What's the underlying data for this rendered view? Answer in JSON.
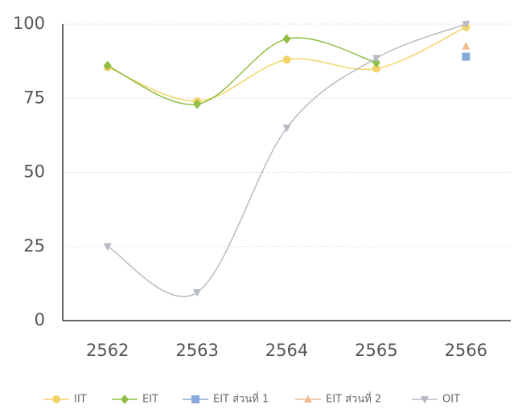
{
  "chart_data": {
    "type": "line",
    "categories": [
      "2562",
      "2563",
      "2564",
      "2565",
      "2566"
    ],
    "series": [
      {
        "name": "IIT",
        "color": "#f3d468",
        "marker": "circle",
        "values": [
          85.5,
          74,
          88,
          85,
          99
        ]
      },
      {
        "name": "EIT",
        "color": "#8fbe45",
        "marker": "diamond",
        "values": [
          86,
          73,
          95,
          87,
          null
        ]
      },
      {
        "name": "EIT ส่วนที่ 1",
        "color": "#86a9dc",
        "marker": "square",
        "values": [
          null,
          null,
          null,
          null,
          89
        ]
      },
      {
        "name": "EIT ส่วนที่ 2",
        "color": "#f1bb8e",
        "marker": "triangle",
        "values": [
          null,
          null,
          null,
          null,
          92.5
        ]
      },
      {
        "name": "OIT",
        "color": "#b7bbc5",
        "marker": "triangle-down",
        "values": [
          25,
          9.5,
          65,
          88.5,
          100
        ]
      }
    ],
    "ylim": [
      0,
      100
    ],
    "yticks": [
      0,
      25,
      50,
      75,
      100
    ],
    "grid": true,
    "legend": "bottom"
  }
}
